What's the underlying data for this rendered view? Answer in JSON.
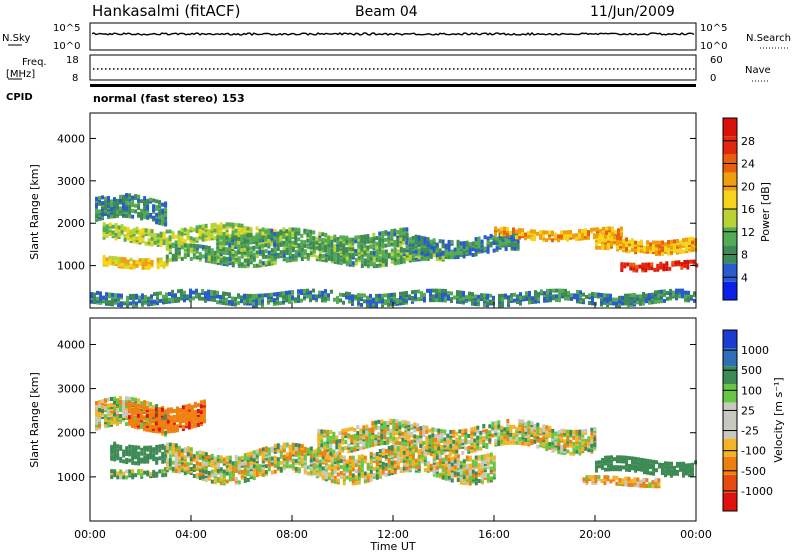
{
  "header": {
    "station": "Hankasalmi (fitACF)",
    "beam": "Beam 04",
    "date": "11/Jun/2009"
  },
  "top_panels": {
    "nsky_label": "N.Sky",
    "nsky_ticks": [
      "10^5",
      "10^0"
    ],
    "nsearch_label": "N.Search",
    "nsearch_ticks": [
      "10^5",
      "10^0"
    ],
    "freq_label": "Freq.",
    "freq_unit": "[MHz]",
    "freq_ticks": [
      "18",
      "8"
    ],
    "nave_label": "Nave",
    "nave_ticks": [
      "60",
      "0"
    ],
    "cpid_label": "CPID",
    "cpid_text": "normal (fast stereo) 153"
  },
  "power_panel": {
    "ylabel": "Slant Range [km]",
    "yticks": [
      "1000",
      "2000",
      "3000",
      "4000"
    ],
    "colorbar_label": "Power [dB]",
    "colorbar_ticks": [
      "4",
      "8",
      "12",
      "16",
      "20",
      "24",
      "28"
    ],
    "colors": [
      "#0a20e8",
      "#2a5ad0",
      "#3d8a55",
      "#55aa55",
      "#b9d432",
      "#f6d41c",
      "#ef9e10",
      "#e8600a",
      "#e3260c",
      "#d9100a"
    ]
  },
  "velocity_panel": {
    "ylabel": "Slant Range [km]",
    "yticks": [
      "1000",
      "2000",
      "3000",
      "4000"
    ],
    "colorbar_label": "Velocity  [m s⁻¹]",
    "colorbar_ticks": [
      "1000",
      "500",
      "100",
      "25",
      "-25",
      "-100",
      "-500",
      "-1000"
    ],
    "colors": [
      "#1c3cd0",
      "#2f6fba",
      "#3d8a55",
      "#66c842",
      "#c8c8c0",
      "#c8c8c0",
      "#f4b428",
      "#ef8010",
      "#e64a10",
      "#e01010"
    ]
  },
  "xaxis": {
    "label": "Time UT",
    "ticks": [
      "00:00",
      "04:00",
      "08:00",
      "12:00",
      "16:00",
      "20:00",
      "00:00"
    ]
  },
  "chart_data": [
    {
      "type": "heatmap",
      "title": "Power",
      "x_range": [
        "00:00",
        "24:00"
      ],
      "ylabel": "Slant Range [km]",
      "ylim": [
        0,
        4600
      ],
      "colorbar": "Power [dB]",
      "color_range": [
        0,
        32
      ],
      "bands": [
        {
          "t_start": 0.2,
          "t_end": 3.0,
          "range_center": 2300,
          "range_width": 500,
          "power": 8
        },
        {
          "t_start": 0.5,
          "t_end": 8.0,
          "range_center": 1750,
          "range_width": 350,
          "power": 14
        },
        {
          "t_start": 0.5,
          "t_end": 3.0,
          "range_center": 1100,
          "range_width": 200,
          "power": 18
        },
        {
          "t_start": 3.0,
          "t_end": 14.0,
          "range_center": 1250,
          "range_width": 350,
          "power": 10
        },
        {
          "t_start": 5.0,
          "t_end": 12.5,
          "range_center": 1600,
          "range_width": 400,
          "power": 10
        },
        {
          "t_start": 12.5,
          "t_end": 17.0,
          "range_center": 1500,
          "range_width": 400,
          "power": 8
        },
        {
          "t_start": 16.0,
          "t_end": 21.0,
          "range_center": 1750,
          "range_width": 200,
          "power": 20
        },
        {
          "t_start": 20.0,
          "t_end": 24.0,
          "range_center": 1500,
          "range_width": 300,
          "power": 20
        },
        {
          "t_start": 21.0,
          "t_end": 24.0,
          "range_center": 1000,
          "range_width": 150,
          "power": 28
        },
        {
          "t_start": 0.0,
          "t_end": 24.0,
          "range_center": 250,
          "range_width": 250,
          "power": 8
        }
      ]
    },
    {
      "type": "heatmap",
      "title": "Velocity",
      "x_range": [
        "00:00",
        "24:00"
      ],
      "ylabel": "Slant Range [km]",
      "ylim": [
        0,
        4600
      ],
      "colorbar": "Velocity [m s-1]",
      "color_range": [
        -1000,
        1000
      ],
      "bands": [
        {
          "t_start": 0.2,
          "t_end": 3.0,
          "range_center": 2350,
          "range_width": 600,
          "velocity": 0
        },
        {
          "t_start": 1.5,
          "t_end": 4.5,
          "range_center": 2400,
          "range_width": 500,
          "velocity": -400
        },
        {
          "t_start": 0.8,
          "t_end": 3.0,
          "range_center": 1600,
          "range_width": 400,
          "velocity": 300
        },
        {
          "t_start": 0.8,
          "t_end": 3.0,
          "range_center": 1100,
          "range_width": 150,
          "velocity": 80
        },
        {
          "t_start": 3.0,
          "t_end": 16.0,
          "range_center": 1300,
          "range_width": 600,
          "velocity": 0
        },
        {
          "t_start": 9.0,
          "t_end": 20.0,
          "range_center": 1900,
          "range_width": 500,
          "velocity": 0
        },
        {
          "t_start": 20.0,
          "t_end": 24.0,
          "range_center": 1250,
          "range_width": 300,
          "velocity": 300
        },
        {
          "t_start": 19.5,
          "t_end": 22.5,
          "range_center": 900,
          "range_width": 150,
          "velocity": -100
        }
      ]
    },
    {
      "type": "line",
      "title": "N.Sky",
      "x_range": [
        "00:00",
        "24:00"
      ],
      "ylim": [
        0,
        100000
      ],
      "approx_level": 60000
    },
    {
      "type": "scatter",
      "title": "Freq.",
      "x_range": [
        "00:00",
        "24:00"
      ],
      "ylim": [
        8,
        18
      ],
      "approx_value": 12.5
    }
  ]
}
